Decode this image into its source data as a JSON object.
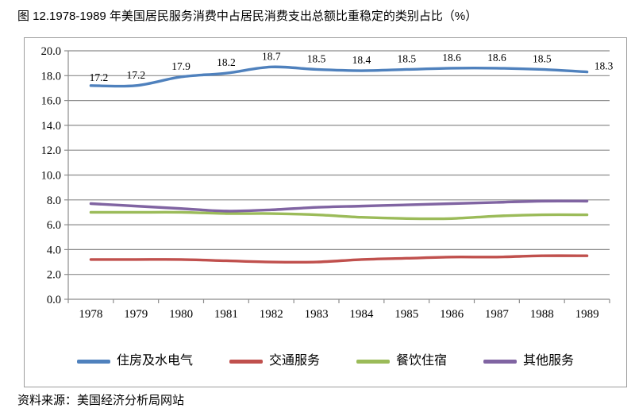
{
  "title": "图 12.1978-1989 年美国居民服务消费中占居民消费支出总额比重稳定的类别占比（%）",
  "source": "资料来源：美国经济分析局网站",
  "chart_data": {
    "type": "line",
    "title": "图 12.1978-1989 年美国居民服务消费中占居民消费支出总额比重稳定的类别占比（%）",
    "x": [
      "1978",
      "1979",
      "1980",
      "1981",
      "1982",
      "1983",
      "1984",
      "1985",
      "1986",
      "1987",
      "1988",
      "1989"
    ],
    "xlabel": "",
    "ylabel": "",
    "ylim": [
      0,
      20
    ],
    "ytick_step": 2,
    "ytick_labels": [
      "0.0",
      "2.0",
      "4.0",
      "6.0",
      "8.0",
      "10.0",
      "12.0",
      "14.0",
      "16.0",
      "18.0",
      "20.0"
    ],
    "grid": true,
    "legend_position": "bottom",
    "axis_color": "#8c8c8c",
    "label_color": "#000000",
    "series": [
      {
        "name": "住房及水电气",
        "color": "#4F81BD",
        "values": [
          17.2,
          17.2,
          17.9,
          18.2,
          18.7,
          18.5,
          18.4,
          18.5,
          18.6,
          18.6,
          18.5,
          18.3
        ],
        "data_labels": true
      },
      {
        "name": "交通服务",
        "color": "#C0504D",
        "values": [
          3.2,
          3.2,
          3.2,
          3.1,
          3.0,
          3.0,
          3.2,
          3.3,
          3.4,
          3.4,
          3.5,
          3.5
        ],
        "data_labels": false
      },
      {
        "name": "餐饮住宿",
        "color": "#9BBB59",
        "values": [
          7.0,
          7.0,
          7.0,
          6.9,
          6.9,
          6.8,
          6.6,
          6.5,
          6.5,
          6.7,
          6.8,
          6.8
        ],
        "data_labels": false
      },
      {
        "name": "其他服务",
        "color": "#8064A2",
        "values": [
          7.7,
          7.5,
          7.3,
          7.1,
          7.2,
          7.4,
          7.5,
          7.6,
          7.7,
          7.8,
          7.9,
          7.9
        ],
        "data_labels": false
      }
    ]
  }
}
